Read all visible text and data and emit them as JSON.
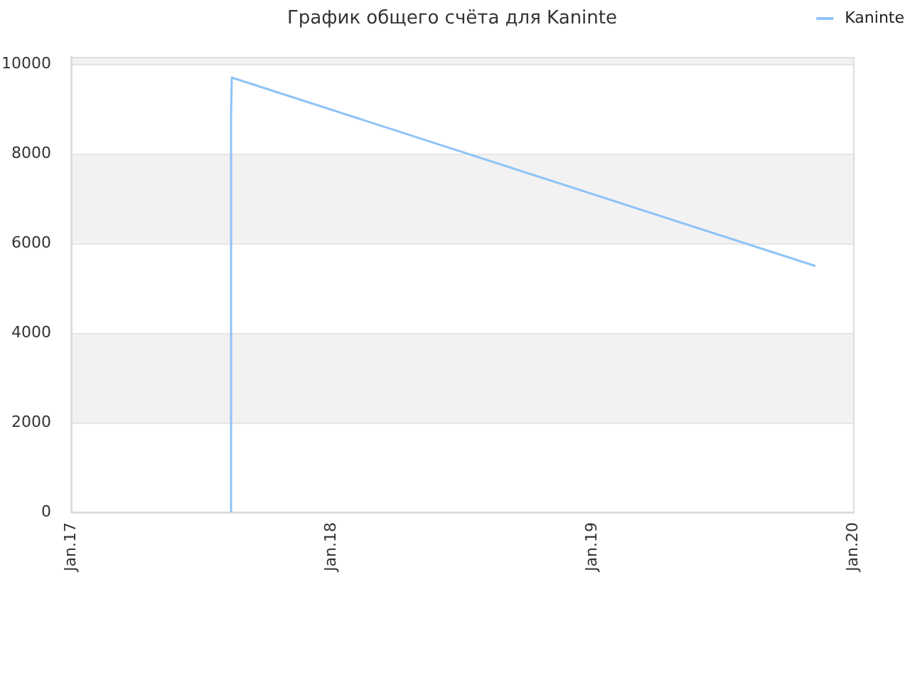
{
  "chart_data": {
    "type": "line",
    "title": "График общего счёта для Kaninte",
    "x": [
      "2017-08-13",
      "2017-08-13",
      "2017-08-14",
      "2019-11-08"
    ],
    "series": [
      {
        "name": "Kaninte",
        "color": "#8fc3f7",
        "values": [
          0,
          8900,
          9700,
          5500
        ]
      }
    ],
    "xlim": [
      "2017-01-01",
      "2020-01-01"
    ],
    "xticks": [
      {
        "value": "2017-01-01",
        "label": "Jan.17"
      },
      {
        "value": "2018-01-01",
        "label": "Jan.18"
      },
      {
        "value": "2019-01-01",
        "label": "Jan.19"
      },
      {
        "value": "2020-01-01",
        "label": "Jan.20"
      }
    ],
    "ylim": [
      0,
      10160
    ],
    "yticks": [
      0,
      2000,
      4000,
      6000,
      8000,
      10000
    ],
    "grid": "y",
    "legend": "top right",
    "marker": "none",
    "line_style": "solid"
  }
}
